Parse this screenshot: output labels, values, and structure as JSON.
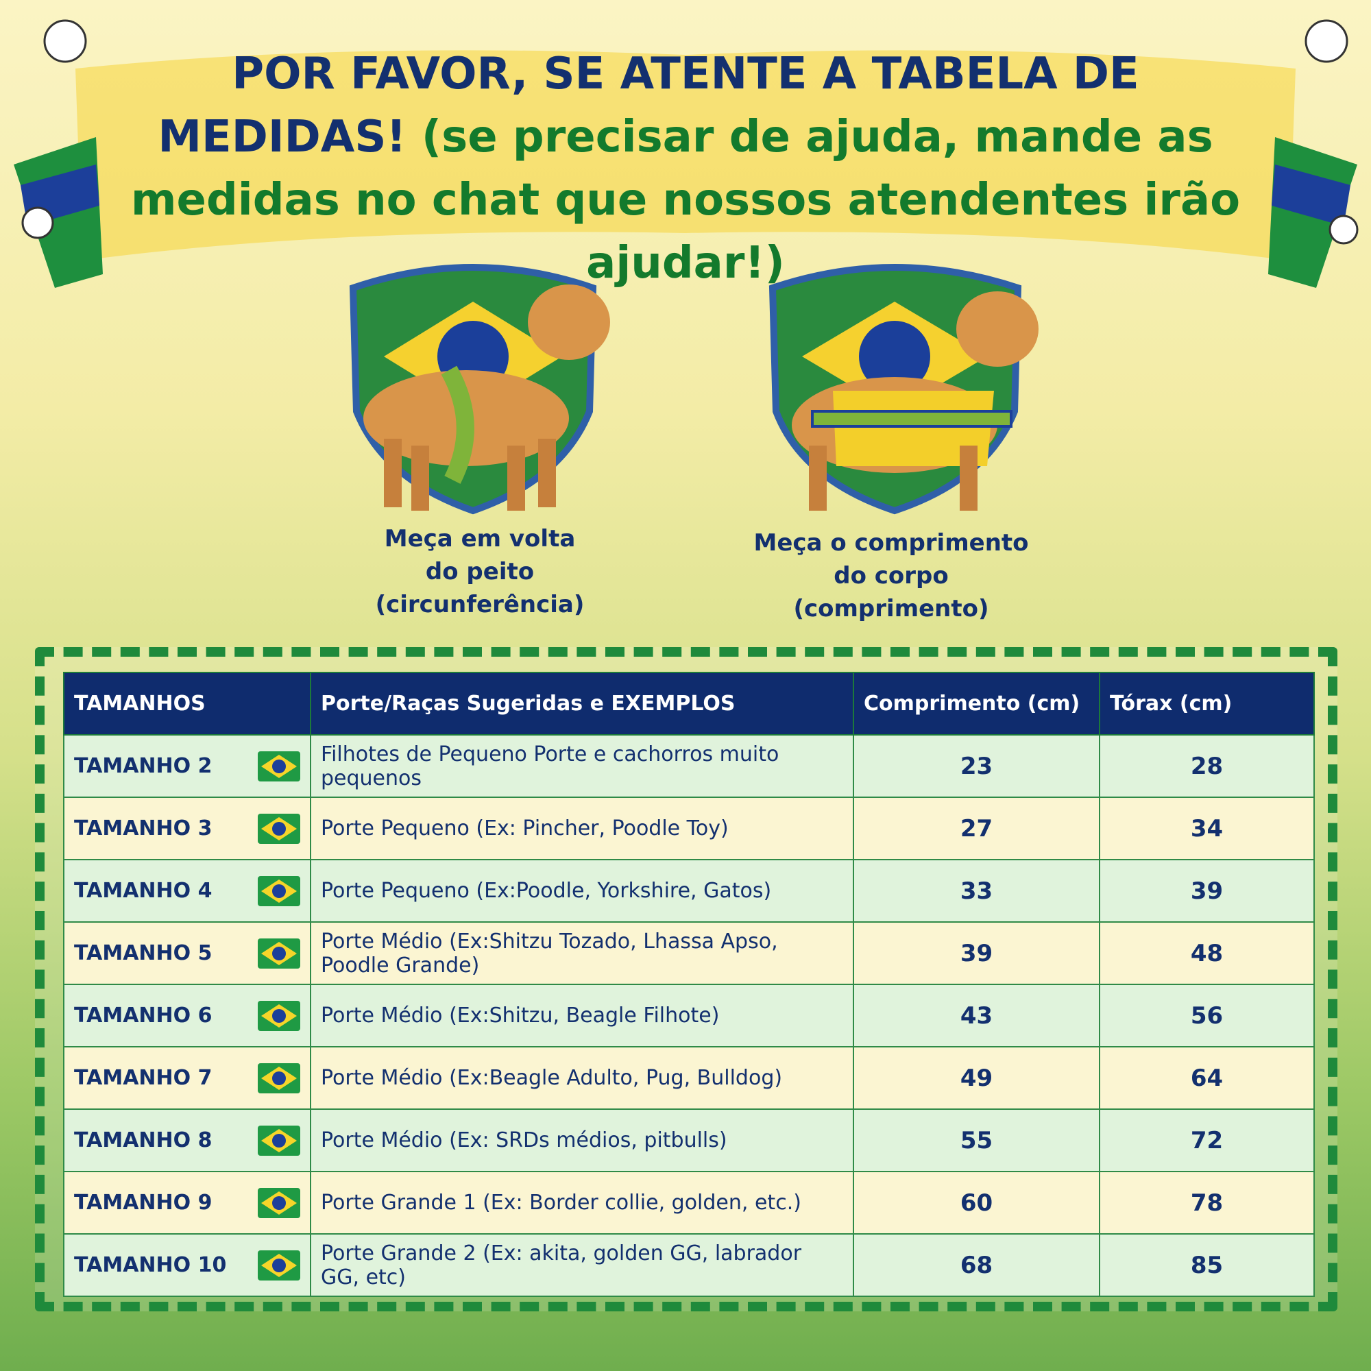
{
  "header": {
    "title": "POR FAVOR, SE ATENTE A TABELA DE MEDIDAS!",
    "subtitle": "(se precisar de ajuda, mande as medidas no chat que nossos atendentes irão ajudar!)"
  },
  "instructions": [
    {
      "lines": [
        "Meça em volta",
        "do peito",
        "(circunferência)"
      ]
    },
    {
      "lines": [
        "Meça o comprimento",
        "do corpo",
        "(comprimento)"
      ]
    }
  ],
  "table": {
    "columns": [
      "TAMANHOS",
      "Porte/Raças Sugeridas e EXEMPLOS",
      "Comprimento (cm)",
      "Tórax (cm)"
    ],
    "rows": [
      [
        "TAMANHO 2",
        "Filhotes de Pequeno Porte e cachorros muito pequenos",
        23,
        28
      ],
      [
        "TAMANHO 3",
        "Porte Pequeno (Ex: Pincher, Poodle Toy)",
        27,
        34
      ],
      [
        "TAMANHO 4",
        "Porte Pequeno (Ex:Poodle, Yorkshire, Gatos)",
        33,
        39
      ],
      [
        "TAMANHO 5",
        "Porte Médio (Ex:Shitzu Tozado, Lhassa Apso, Poodle Grande)",
        39,
        48
      ],
      [
        "TAMANHO 6",
        "Porte Médio (Ex:Shitzu, Beagle Filhote)",
        43,
        56
      ],
      [
        "TAMANHO 7",
        "Porte Médio (Ex:Beagle Adulto, Pug, Bulldog)",
        49,
        64
      ],
      [
        "TAMANHO 8",
        "Porte Médio (Ex: SRDs médios, pitbulls)",
        55,
        72
      ],
      [
        "TAMANHO 9",
        "Porte Grande 1 (Ex: Border collie, golden, etc.)",
        60,
        78
      ],
      [
        "TAMANHO 10",
        "Porte Grande 2 (Ex: akita, golden GG, labrador GG, etc)",
        68,
        85
      ]
    ]
  }
}
